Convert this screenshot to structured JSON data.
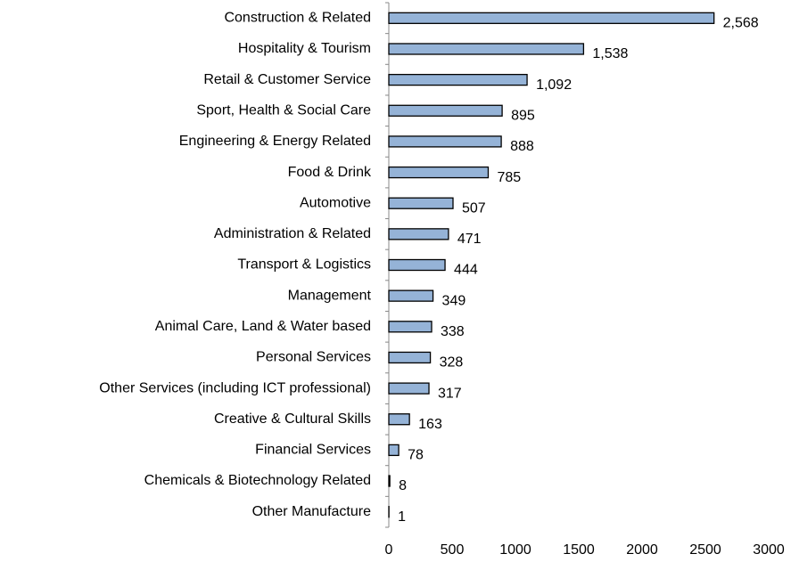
{
  "chart_data": {
    "type": "hbar",
    "categories": [
      "Construction & Related",
      "Hospitality & Tourism",
      "Retail & Customer Service",
      "Sport, Health & Social Care",
      "Engineering & Energy Related",
      "Food & Drink",
      "Automotive",
      "Administration & Related",
      "Transport & Logistics",
      "Management",
      "Animal Care, Land & Water based",
      "Personal Services",
      "Other Services (including ICT professional)",
      "Creative & Cultural Skills",
      "Financial Services",
      "Chemicals & Biotechnology Related",
      "Other Manufacture"
    ],
    "values": [
      2568,
      1538,
      1092,
      895,
      888,
      785,
      507,
      471,
      444,
      349,
      338,
      328,
      317,
      163,
      78,
      8,
      1
    ],
    "value_labels": [
      "2,568",
      "1,538",
      "1,092",
      "895",
      "888",
      "785",
      "507",
      "471",
      "444",
      "349",
      "338",
      "328",
      "317",
      "163",
      "78",
      "8",
      "1"
    ],
    "color": "#95b3d7",
    "xlim": [
      0,
      3000
    ],
    "xticks": [
      0,
      500,
      1000,
      1500,
      2000,
      2500,
      3000
    ],
    "grid": false
  }
}
